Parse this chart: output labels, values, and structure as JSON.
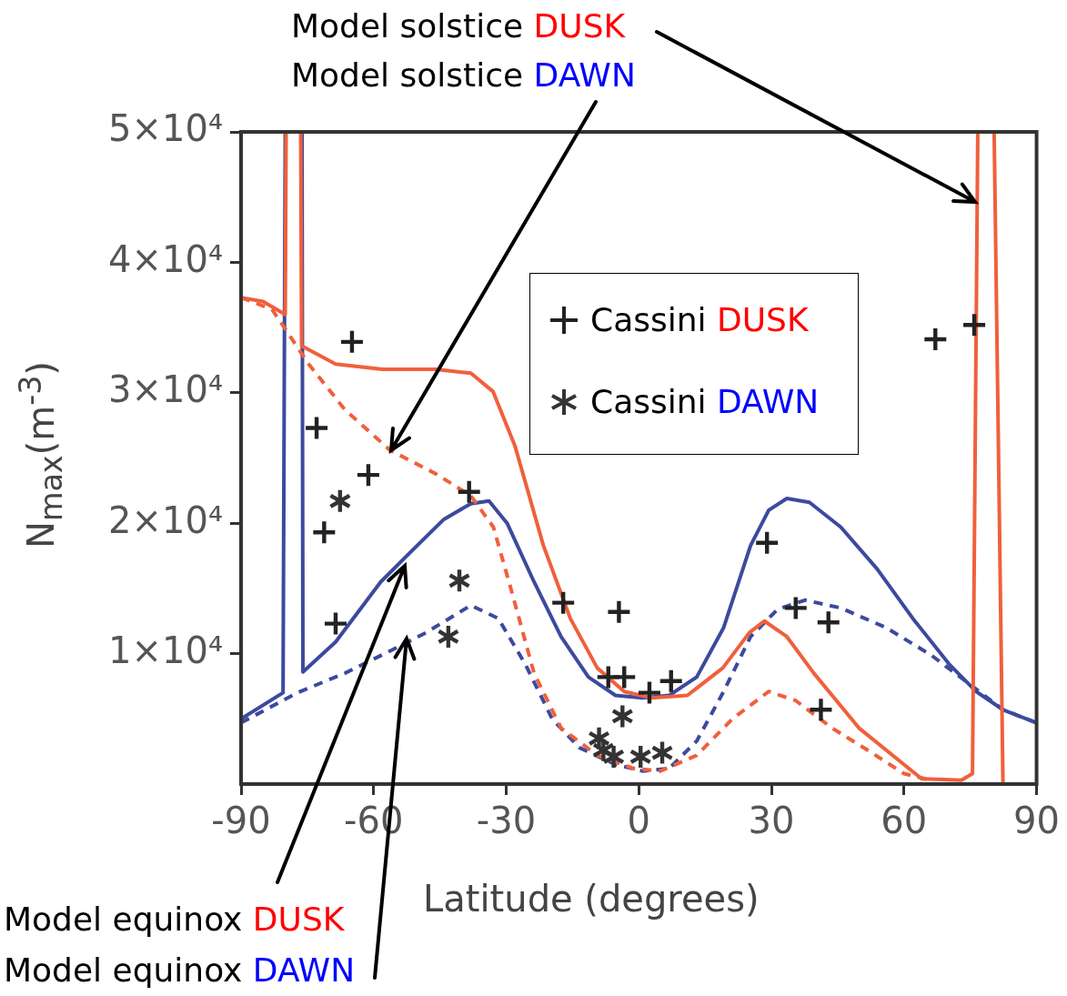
{
  "chart_data": {
    "type": "line",
    "xlabel": "Latitude (degrees)",
    "ylabel": "N$_{max}$(m$^{-3}$)",
    "xlim": [
      -90,
      90
    ],
    "ylim": [
      0,
      50000
    ],
    "xticks": [
      -90,
      -60,
      -30,
      0,
      30,
      60,
      90
    ],
    "yticks": [
      {
        "value": 10000,
        "label": "1×10⁴"
      },
      {
        "value": 20000,
        "label": "2×10⁴"
      },
      {
        "value": 30000,
        "label": "3×10⁴"
      },
      {
        "value": 40000,
        "label": "4×10⁴"
      },
      {
        "value": 50000,
        "label": "5×10⁴"
      }
    ],
    "legend": "top right",
    "series": [
      {
        "name": "Model solstice DUSK",
        "type": "line",
        "color": "#f0603c",
        "line_style": "solid",
        "marker": "none",
        "x": [
          -90,
          -85,
          -80,
          -79.8,
          -76.5,
          -76.3,
          -68.6,
          -58,
          -46,
          -38,
          -33,
          -28,
          -21.6,
          -15.5,
          -9.4,
          -3.3,
          2.9,
          11,
          19,
          25,
          28.4,
          33.5,
          39.6,
          49.8,
          60,
          64,
          73,
          75.5,
          76.7,
          80.4,
          82.4
        ],
        "values": [
          37300,
          37000,
          36000,
          50000,
          50000,
          33600,
          32200,
          31800,
          31800,
          31500,
          30100,
          25900,
          18300,
          12700,
          8900,
          7100,
          6600,
          6800,
          8900,
          11600,
          12500,
          11300,
          8500,
          4300,
          1500,
          400,
          300,
          800,
          50000,
          50000,
          0
        ]
      },
      {
        "name": "Model solstice DAWN",
        "type": "line",
        "color": "#f0603c",
        "line_style": "dashed",
        "marker": "none",
        "x": [
          -90,
          -83,
          -74.7,
          -66.5,
          -56.3,
          -46,
          -38,
          -32.9,
          -28.8,
          -23.7,
          -17.6,
          -9.4,
          -1.2,
          4.9,
          13.1,
          21.2,
          29.4,
          35.5,
          43.7,
          51.8,
          60,
          66.1
        ],
        "values": [
          37300,
          36400,
          32200,
          28700,
          25600,
          23800,
          22100,
          19700,
          14800,
          8500,
          4300,
          2200,
          1200,
          1000,
          2200,
          5000,
          7100,
          6400,
          4300,
          2600,
          800,
          300
        ]
      },
      {
        "name": "Model equinox DUSK",
        "type": "line",
        "color": "#3c4a9e",
        "line_style": "solid",
        "marker": "none",
        "x": [
          -90,
          -80.5,
          -80,
          -76.2,
          -76,
          -68.6,
          -58.4,
          -52.2,
          -44.1,
          -38,
          -33.9,
          -29.8,
          -23.7,
          -17.6,
          -11.4,
          -5.3,
          0.8,
          6.9,
          13.1,
          19.2,
          25.3,
          29.4,
          33.5,
          38.6,
          45.7,
          53.9,
          62,
          70.2,
          76.3,
          82.4,
          90
        ],
        "values": [
          5000,
          7000,
          50000,
          50000,
          8600,
          10900,
          15500,
          17600,
          20300,
          21500,
          21700,
          20000,
          15500,
          11300,
          8200,
          6800,
          6600,
          6800,
          8200,
          12000,
          18300,
          21000,
          21900,
          21600,
          19700,
          16500,
          12700,
          9200,
          7100,
          5700,
          4700
        ]
      },
      {
        "name": "Model equinox DAWN",
        "type": "line",
        "color": "#3c4a9e",
        "line_style": "dashed",
        "marker": "none",
        "x": [
          -90,
          -77.3,
          -66.5,
          -56.3,
          -48.2,
          -38,
          -31.8,
          -25.7,
          -19.6,
          -13.5,
          -5.3,
          0.8,
          6.9,
          13.1,
          19.2,
          25.3,
          31.4,
          37.6,
          45.7,
          55.9,
          66.1,
          74.3,
          82.4,
          90
        ],
        "values": [
          4700,
          7000,
          8500,
          10200,
          11600,
          13700,
          12700,
          9200,
          5000,
          2800,
          1500,
          1000,
          1200,
          3300,
          7100,
          11300,
          13400,
          14100,
          13500,
          12000,
          9900,
          7800,
          5700,
          4700
        ]
      },
      {
        "name": "Cassini DUSK",
        "type": "scatter",
        "color": "#222222",
        "marker": "cross",
        "x": [
          -72.9,
          -64.9,
          -71.2,
          -61.2,
          -68.6,
          -38.4,
          -17.1,
          -4.5,
          -6.9,
          -3.3,
          2.4,
          7.3,
          29,
          35.5,
          42.9,
          41.2,
          67.1,
          75.9
        ],
        "values": [
          27300,
          33900,
          19300,
          23700,
          12300,
          22400,
          13900,
          13200,
          8200,
          8200,
          7000,
          7900,
          18500,
          13500,
          12400,
          5700,
          34100,
          35200
        ]
      },
      {
        "name": "Cassini DAWN",
        "type": "scatter",
        "color": "#333333",
        "marker": "star",
        "x": [
          -67.6,
          -40.6,
          -43.1,
          -3.7,
          -9,
          -8,
          -5.7,
          0.4,
          5.3
        ],
        "values": [
          21700,
          15600,
          11300,
          5200,
          3500,
          2600,
          2100,
          2100,
          2400
        ]
      }
    ]
  }
}
